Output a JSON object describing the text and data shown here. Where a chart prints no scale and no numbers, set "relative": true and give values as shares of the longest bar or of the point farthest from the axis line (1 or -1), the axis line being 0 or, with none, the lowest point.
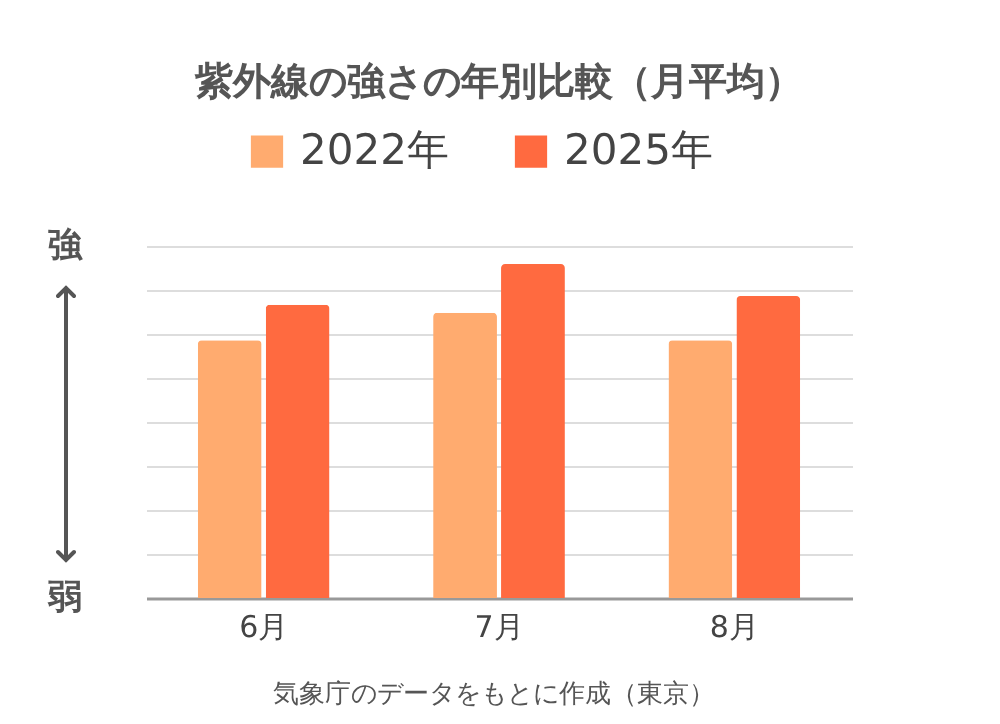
{
  "chart_data": {
    "type": "bar",
    "title": "紫外線の強さの年別比較（月平均）",
    "categories": [
      "6月",
      "7月",
      "8月"
    ],
    "series": [
      {
        "name": "2022年",
        "color": "#ffab6f",
        "values": [
          0.772,
          0.854,
          0.772
        ]
      },
      {
        "name": "2025年",
        "color": "#ff6a40",
        "values": [
          0.878,
          1,
          0.904
        ]
      }
    ],
    "relative": true,
    "grid": "y",
    "legend": "top",
    "annotations": [
      "強",
      "弱",
      "気象庁のデータをもとに作成（東京）"
    ]
  }
}
